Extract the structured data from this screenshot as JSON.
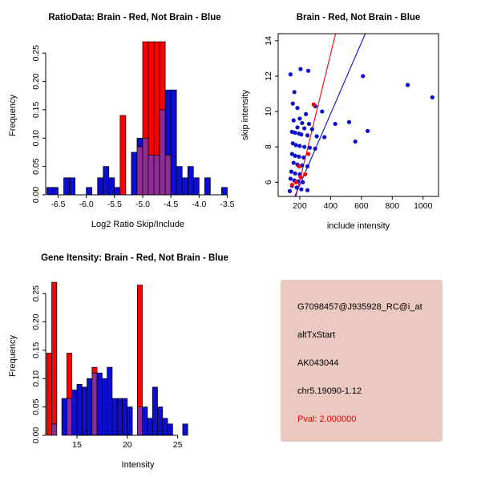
{
  "window": {
    "background": "#FFFFFF"
  },
  "colors": {
    "red": "#FE0000",
    "blue": "#0D0DCE",
    "overlap": "#8F2D96",
    "axis": "#000000"
  },
  "info_box": {
    "bg_color": "#ECC9C0",
    "lines": [
      {
        "text": "G7098457@J935928_RC@i_at",
        "color": "#000000"
      },
      {
        "text": "altTxStart",
        "color": "#000000"
      },
      {
        "text": "AK043044",
        "color": "#000000"
      },
      {
        "text": "chr5.19090-1.12",
        "color": "#000000"
      },
      {
        "text": "Pval: 2.000000",
        "color": "#E60000"
      }
    ]
  },
  "chart_data": [
    {
      "type": "bar",
      "subtype": "overlaid-histogram",
      "title": "RatioData: Brain - Red, Not Brain - Blue",
      "xlabel": "Log2 Ratio Skip/Include",
      "ylabel": "Frequency",
      "xlim": [
        -6.72,
        -3.45
      ],
      "ylim": [
        0,
        0.28
      ],
      "xticks": [
        -6.5,
        -6.0,
        -5.5,
        -5.0,
        -4.5,
        -4.0,
        -3.5
      ],
      "xtick_labels": [
        "-6.5",
        "-6.0",
        "-5.5",
        "-5.0",
        "-4.5",
        "-4.0",
        "-3.5"
      ],
      "yticks": [
        0,
        0.05,
        0.1,
        0.15,
        0.2,
        0.25
      ],
      "ytick_labels": [
        "0.00",
        "0.05",
        "0.10",
        "0.15",
        "0.20",
        "0.25"
      ],
      "bin_width": 0.1,
      "series_legend": [
        {
          "name": "Brain",
          "color": "red"
        },
        {
          "name": "Not Brain",
          "color": "blue"
        }
      ],
      "bins_format": [
        "bin_start",
        "not_brain_freq_blue",
        "brain_freq_red"
      ],
      "bins": [
        [
          -6.7,
          0.013,
          0
        ],
        [
          -6.6,
          0.013,
          0
        ],
        [
          -6.4,
          0.03,
          0
        ],
        [
          -6.3,
          0.03,
          0
        ],
        [
          -6.0,
          0.013,
          0
        ],
        [
          -5.8,
          0.03,
          0
        ],
        [
          -5.7,
          0.05,
          0
        ],
        [
          -5.6,
          0.03,
          0
        ],
        [
          -5.5,
          0.013,
          0
        ],
        [
          -5.4,
          0,
          0.14
        ],
        [
          -5.2,
          0.075,
          0
        ],
        [
          -5.1,
          0.1,
          0.085
        ],
        [
          -5.0,
          0.1,
          0.27
        ],
        [
          -4.9,
          0.07,
          0.27
        ],
        [
          -4.8,
          0.07,
          0.27
        ],
        [
          -4.7,
          0.15,
          0.27
        ],
        [
          -4.6,
          0.185,
          0.07
        ],
        [
          -4.5,
          0.185,
          0
        ],
        [
          -4.4,
          0.05,
          0
        ],
        [
          -4.3,
          0.03,
          0
        ],
        [
          -4.2,
          0.05,
          0
        ],
        [
          -4.1,
          0.03,
          0
        ],
        [
          -3.9,
          0.03,
          0
        ],
        [
          -3.6,
          0.013,
          0
        ]
      ]
    },
    {
      "type": "scatter",
      "title": "Brain - Red, Not Brain - Blue",
      "xlabel": "include intensity",
      "ylabel": "skip intensity",
      "xlim": [
        60,
        1100
      ],
      "ylim": [
        5.2,
        14.4
      ],
      "xticks": [
        200,
        400,
        600,
        800,
        1000
      ],
      "xtick_labels": [
        "200",
        "400",
        "600",
        "800",
        "1000"
      ],
      "yticks": [
        6,
        8,
        10,
        12,
        14
      ],
      "ytick_labels": [
        "6",
        "8",
        "10",
        "12",
        "14"
      ],
      "series": [
        {
          "name": "Not Brain",
          "color": "blue",
          "points": [
            [
              140,
              12.1
            ],
            [
              205,
              12.4
            ],
            [
              255,
              12.3
            ],
            [
              165,
              11.1
            ],
            [
              610,
              12.0
            ],
            [
              900,
              11.5
            ],
            [
              1060,
              10.8
            ],
            [
              155,
              10.45
            ],
            [
              185,
              10.2
            ],
            [
              300,
              10.3
            ],
            [
              345,
              10.0
            ],
            [
              240,
              9.85
            ],
            [
              200,
              9.6
            ],
            [
              160,
              9.5
            ],
            [
              215,
              9.35
            ],
            [
              260,
              9.3
            ],
            [
              430,
              9.3
            ],
            [
              520,
              9.4
            ],
            [
              185,
              9.1
            ],
            [
              230,
              9.05
            ],
            [
              280,
              9.0
            ],
            [
              640,
              8.9
            ],
            [
              150,
              8.85
            ],
            [
              170,
              8.8
            ],
            [
              195,
              8.75
            ],
            [
              210,
              8.7
            ],
            [
              250,
              8.65
            ],
            [
              310,
              8.6
            ],
            [
              360,
              8.55
            ],
            [
              560,
              8.3
            ],
            [
              155,
              8.2
            ],
            [
              175,
              8.1
            ],
            [
              200,
              8.05
            ],
            [
              230,
              8.0
            ],
            [
              265,
              7.95
            ],
            [
              300,
              7.9
            ],
            [
              150,
              7.6
            ],
            [
              170,
              7.5
            ],
            [
              195,
              7.45
            ],
            [
              225,
              7.4
            ],
            [
              160,
              7.1
            ],
            [
              185,
              7.0
            ],
            [
              215,
              6.95
            ],
            [
              250,
              6.9
            ],
            [
              145,
              6.6
            ],
            [
              170,
              6.5
            ],
            [
              200,
              6.45
            ],
            [
              140,
              6.2
            ],
            [
              165,
              6.1
            ],
            [
              190,
              6.05
            ],
            [
              220,
              6.0
            ],
            [
              150,
              5.8
            ],
            [
              180,
              5.7
            ],
            [
              210,
              5.6
            ],
            [
              250,
              5.55
            ],
            [
              135,
              5.5
            ]
          ]
        },
        {
          "name": "Brain",
          "color": "red",
          "points": [
            [
              150,
              5.85
            ],
            [
              175,
              6.0
            ],
            [
              205,
              6.3
            ],
            [
              235,
              6.45
            ],
            [
              195,
              6.9
            ],
            [
              255,
              7.6
            ],
            [
              290,
              10.4
            ]
          ]
        }
      ],
      "lines": [
        {
          "name": "brain-fit-line",
          "color": "red",
          "x1": 175,
          "y1": 5.2,
          "x2": 432,
          "y2": 14.4
        },
        {
          "name": "not-brain-fit-line",
          "color": "blue",
          "x1": 168,
          "y1": 5.2,
          "x2": 625,
          "y2": 14.4
        }
      ]
    },
    {
      "type": "bar",
      "subtype": "overlaid-histogram",
      "title": "Gene Itensity: Brain - Red, Not Brain - Blue",
      "xlabel": "Intensity",
      "ylabel": "Frequency",
      "xlim": [
        11.9,
        30.2
      ],
      "ylim": [
        0,
        0.28
      ],
      "xticks": [
        15,
        20,
        25
      ],
      "xtick_labels": [
        "15",
        "20",
        "25"
      ],
      "yticks": [
        0,
        0.05,
        0.1,
        0.15,
        0.2,
        0.25
      ],
      "ytick_labels": [
        "0.00",
        "0.05",
        "0.10",
        "0.15",
        "0.20",
        "0.25"
      ],
      "bin_width": 0.5,
      "series_legend": [
        {
          "name": "Brain",
          "color": "red"
        },
        {
          "name": "Not Brain",
          "color": "blue"
        }
      ],
      "bins_format": [
        "bin_start",
        "not_brain_freq_blue",
        "brain_freq_red"
      ],
      "bins": [
        [
          12.0,
          0,
          0.145
        ],
        [
          12.5,
          0.02,
          0.27
        ],
        [
          13.5,
          0.065,
          0
        ],
        [
          14.0,
          0.065,
          0.145
        ],
        [
          14.5,
          0.08,
          0
        ],
        [
          15.0,
          0.09,
          0
        ],
        [
          15.5,
          0.085,
          0
        ],
        [
          16.0,
          0.1,
          0
        ],
        [
          16.5,
          0.11,
          0.12
        ],
        [
          17.0,
          0.11,
          0
        ],
        [
          17.5,
          0.1,
          0
        ],
        [
          18.0,
          0.12,
          0
        ],
        [
          18.5,
          0.065,
          0
        ],
        [
          19.0,
          0.065,
          0
        ],
        [
          19.5,
          0.065,
          0
        ],
        [
          20.0,
          0.05,
          0
        ],
        [
          21.0,
          0.05,
          0.265
        ],
        [
          21.5,
          0.05,
          0
        ],
        [
          22.0,
          0.03,
          0
        ],
        [
          22.5,
          0.085,
          0
        ],
        [
          23.0,
          0.05,
          0
        ],
        [
          23.5,
          0.03,
          0
        ],
        [
          24.0,
          0.02,
          0
        ],
        [
          25.5,
          0.02,
          0
        ]
      ]
    }
  ]
}
